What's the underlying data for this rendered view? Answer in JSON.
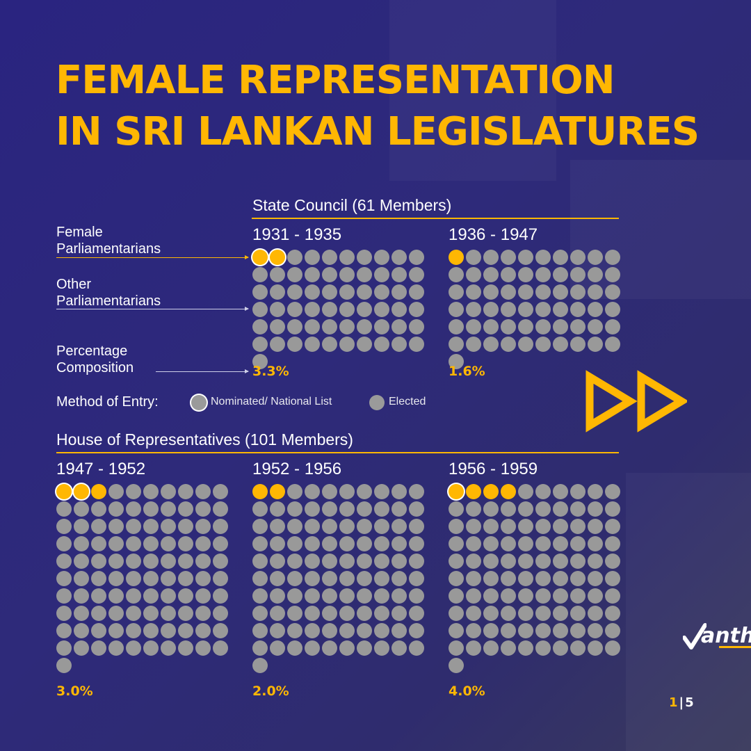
{
  "title_line1": "FEMALE REPRESENTATION",
  "title_line2": "IN SRI LANKAN LEGISLATURES",
  "labels": {
    "female": "Female Parliamentarians",
    "other": "Other Parliamentarians",
    "percentage": "Percentage Composition"
  },
  "legend": {
    "title": "Method of Entry:",
    "nominated": "Nominated/ National List",
    "elected": "Elected"
  },
  "page": {
    "current": "1",
    "separator": "|",
    "total": "5"
  },
  "logo": {
    "text": "anth"
  },
  "colors": {
    "female": "#ffb703",
    "other": "#999999",
    "background": "#2a2480",
    "accent": "#ffb703"
  },
  "chart_data": [
    {
      "type": "waffle",
      "title": "State Council (61 Members)",
      "periods": [
        {
          "label": "1931 - 1935",
          "total": 61,
          "female": 2,
          "female_nominated": 2,
          "percentage": "3.3%"
        },
        {
          "label": "1936 - 1947",
          "total": 61,
          "female": 1,
          "female_nominated": 0,
          "percentage": "1.6%"
        }
      ]
    },
    {
      "type": "waffle",
      "title": "House of Representatives (101 Members)",
      "periods": [
        {
          "label": "1947 - 1952",
          "total": 101,
          "female": 3,
          "female_nominated": 2,
          "percentage": "3.0%"
        },
        {
          "label": "1952 - 1956",
          "total": 101,
          "female": 2,
          "female_nominated": 0,
          "percentage": "2.0%"
        },
        {
          "label": "1956 - 1959",
          "total": 101,
          "female": 4,
          "female_nominated": 1,
          "percentage": "4.0%"
        }
      ]
    }
  ]
}
